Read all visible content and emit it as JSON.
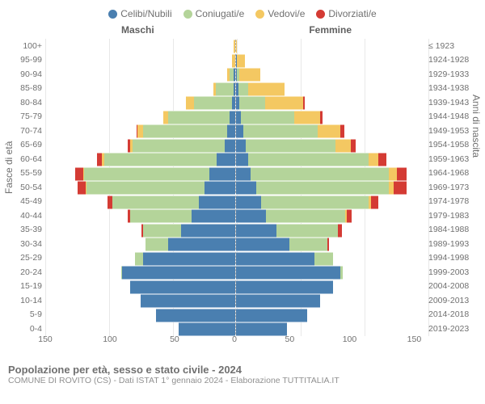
{
  "legend": [
    {
      "label": "Celibi/Nubili",
      "color": "#4a7fb0"
    },
    {
      "label": "Coniugati/e",
      "color": "#b4d49a"
    },
    {
      "label": "Vedovi/e",
      "color": "#f4c862"
    },
    {
      "label": "Divorziati/e",
      "color": "#d43b34"
    }
  ],
  "headers": {
    "left": "Maschi",
    "right": "Femmine"
  },
  "axis_labels": {
    "left": "Fasce di età",
    "right": "Anni di nascita"
  },
  "x_ticks": [
    "150",
    "100",
    "50",
    "0",
    "50",
    "100",
    "150"
  ],
  "x_max": 150,
  "title": "Popolazione per età, sesso e stato civile - 2024",
  "subtitle": "COMUNE DI ROVITO (CS) - Dati ISTAT 1° gennaio 2024 - Elaborazione TUTTITALIA.IT",
  "rows": [
    {
      "age": "100+",
      "birth": "≤ 1923",
      "m": [
        0,
        0,
        1,
        0
      ],
      "f": [
        0,
        0,
        1,
        0
      ]
    },
    {
      "age": "95-99",
      "birth": "1924-1928",
      "m": [
        0,
        0,
        2,
        0
      ],
      "f": [
        1,
        0,
        6,
        0
      ]
    },
    {
      "age": "90-94",
      "birth": "1929-1933",
      "m": [
        1,
        3,
        2,
        0
      ],
      "f": [
        1,
        2,
        16,
        0
      ]
    },
    {
      "age": "85-89",
      "birth": "1934-1938",
      "m": [
        1,
        14,
        2,
        0
      ],
      "f": [
        2,
        8,
        28,
        0
      ]
    },
    {
      "age": "80-84",
      "birth": "1939-1943",
      "m": [
        2,
        30,
        6,
        0
      ],
      "f": [
        3,
        20,
        30,
        1
      ]
    },
    {
      "age": "75-79",
      "birth": "1944-1948",
      "m": [
        4,
        48,
        4,
        0
      ],
      "f": [
        4,
        42,
        20,
        2
      ]
    },
    {
      "age": "70-74",
      "birth": "1949-1953",
      "m": [
        6,
        66,
        4,
        1
      ],
      "f": [
        6,
        58,
        18,
        3
      ]
    },
    {
      "age": "65-69",
      "birth": "1954-1958",
      "m": [
        8,
        72,
        2,
        2
      ],
      "f": [
        8,
        70,
        12,
        4
      ]
    },
    {
      "age": "60-64",
      "birth": "1959-1963",
      "m": [
        14,
        88,
        2,
        4
      ],
      "f": [
        10,
        94,
        8,
        6
      ]
    },
    {
      "age": "55-59",
      "birth": "1964-1968",
      "m": [
        20,
        98,
        1,
        6
      ],
      "f": [
        12,
        108,
        6,
        8
      ]
    },
    {
      "age": "50-54",
      "birth": "1969-1973",
      "m": [
        24,
        92,
        1,
        6
      ],
      "f": [
        16,
        104,
        4,
        10
      ]
    },
    {
      "age": "45-49",
      "birth": "1974-1978",
      "m": [
        28,
        68,
        0,
        4
      ],
      "f": [
        20,
        84,
        2,
        6
      ]
    },
    {
      "age": "40-44",
      "birth": "1979-1983",
      "m": [
        34,
        48,
        0,
        2
      ],
      "f": [
        24,
        62,
        1,
        4
      ]
    },
    {
      "age": "35-39",
      "birth": "1984-1988",
      "m": [
        42,
        30,
        0,
        1
      ],
      "f": [
        32,
        48,
        0,
        3
      ]
    },
    {
      "age": "30-34",
      "birth": "1989-1993",
      "m": [
        52,
        18,
        0,
        0
      ],
      "f": [
        42,
        30,
        0,
        1
      ]
    },
    {
      "age": "25-29",
      "birth": "1994-1998",
      "m": [
        72,
        6,
        0,
        0
      ],
      "f": [
        62,
        14,
        0,
        0
      ]
    },
    {
      "age": "20-24",
      "birth": "1999-2003",
      "m": [
        88,
        1,
        0,
        0
      ],
      "f": [
        82,
        2,
        0,
        0
      ]
    },
    {
      "age": "15-19",
      "birth": "2004-2008",
      "m": [
        82,
        0,
        0,
        0
      ],
      "f": [
        76,
        0,
        0,
        0
      ]
    },
    {
      "age": "10-14",
      "birth": "2009-2013",
      "m": [
        74,
        0,
        0,
        0
      ],
      "f": [
        66,
        0,
        0,
        0
      ]
    },
    {
      "age": "5-9",
      "birth": "2014-2018",
      "m": [
        62,
        0,
        0,
        0
      ],
      "f": [
        56,
        0,
        0,
        0
      ]
    },
    {
      "age": "0-4",
      "birth": "2019-2023",
      "m": [
        44,
        0,
        0,
        0
      ],
      "f": [
        40,
        0,
        0,
        0
      ]
    }
  ]
}
